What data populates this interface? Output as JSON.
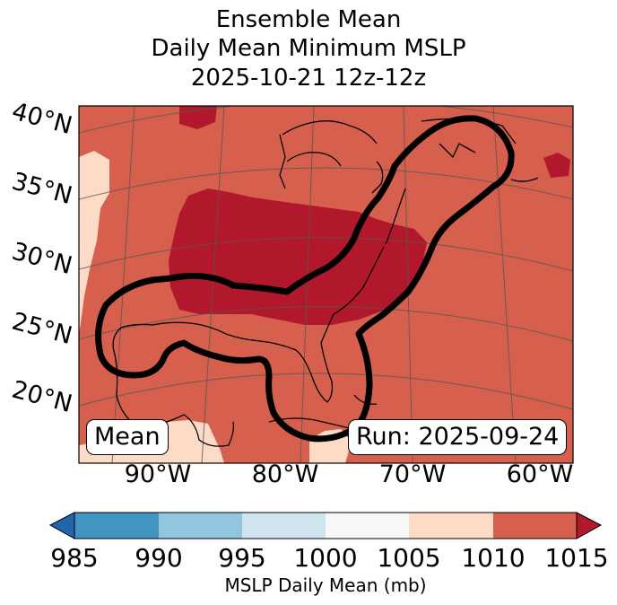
{
  "title": {
    "line1": "Ensemble Mean",
    "line2": "Daily Mean Minimum MSLP",
    "line3": "2025-10-21 12z-12z"
  },
  "lat_labels": [
    "40°N",
    "35°N",
    "30°N",
    "25°N",
    "20°N"
  ],
  "lon_labels": [
    "90°W",
    "80°W",
    "70°W",
    "60°W"
  ],
  "annotations": {
    "left": "Mean",
    "right": "Run: 2025-09-24"
  },
  "colorbar": {
    "label": "MSLP Daily Mean (mb)",
    "ticks": [
      "985",
      "990",
      "995",
      "1000",
      "1005",
      "1010",
      "1015"
    ],
    "colors": [
      "#2166ac",
      "#4393c3",
      "#92c5de",
      "#d1e5f0",
      "#f7f7f7",
      "#fddbc7",
      "#d6604d",
      "#b2182b"
    ]
  },
  "map_colors": {
    "base": "#d6604d",
    "low": "#b2182b",
    "high": "#fddbc7",
    "contour": "#000000"
  }
}
